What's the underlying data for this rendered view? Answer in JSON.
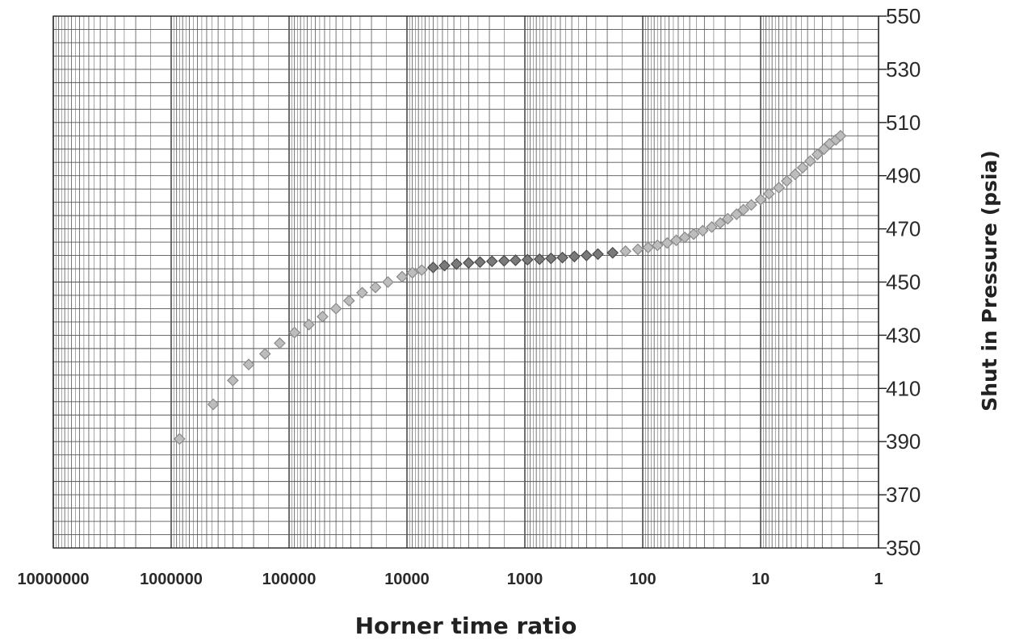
{
  "chart_data": {
    "type": "scatter",
    "title": "",
    "xlabel": "Horner time ratio",
    "ylabel": "Shut in Pressure (psia)",
    "x_scale": "log",
    "x_reversed": true,
    "xlim": [
      10000000,
      1
    ],
    "ylim": [
      350,
      550
    ],
    "x_tick_labels": [
      "10000000",
      "1000000",
      "100000",
      "10000",
      "1000",
      "100",
      "10",
      "1"
    ],
    "y_tick_labels": [
      "550",
      "530",
      "510",
      "490",
      "470",
      "450",
      "430",
      "410",
      "390",
      "370",
      "350"
    ],
    "grid": true,
    "marker": "diamond",
    "series": [
      {
        "x": [
          850000,
          440000,
          300000,
          220000,
          160000,
          120000,
          90000,
          68000,
          52000,
          40000,
          31000,
          24000,
          18500,
          14500,
          11000,
          9000,
          7500,
          6000,
          4800,
          3800,
          3000,
          2400,
          1900,
          1500,
          1200,
          950,
          750,
          600,
          480,
          380,
          300,
          240,
          180,
          140,
          110,
          90,
          75,
          62,
          52,
          44,
          37,
          31,
          26,
          22,
          19,
          16,
          14,
          12,
          10,
          8.5,
          7,
          6,
          5.1,
          4.4,
          3.8,
          3.3,
          2.9,
          2.6,
          2.3,
          2.1
        ],
        "y": [
          391,
          404,
          413,
          419,
          423,
          427,
          431,
          434,
          437,
          440,
          443,
          446,
          448,
          450,
          452,
          453.5,
          454.5,
          455.5,
          456.2,
          456.8,
          457.2,
          457.5,
          457.8,
          458,
          458.2,
          458.4,
          458.6,
          458.9,
          459.2,
          459.6,
          460,
          460.5,
          461,
          461.6,
          462.3,
          463,
          463.8,
          464.7,
          465.7,
          466.8,
          468,
          469.3,
          470.7,
          472.2,
          473.8,
          475.5,
          477.2,
          479,
          481,
          483.2,
          485.5,
          488,
          490.5,
          493,
          495.5,
          498,
          500,
          502,
          503.5,
          505
        ]
      }
    ]
  },
  "colors": {
    "marker_fill": "#7a7a7a",
    "marker_dark": "#4a4a4a",
    "marker_light": "#bdbdbd",
    "grid": "#555555"
  }
}
